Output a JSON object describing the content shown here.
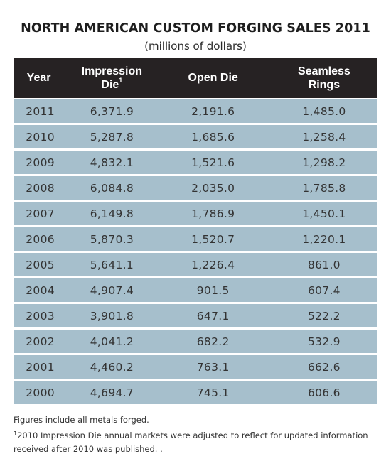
{
  "title": "NORTH AMERICAN CUSTOM FORGING SALES 2011",
  "subtitle": "(millions of dollars)",
  "table": {
    "headers": {
      "year": "Year",
      "impression_line1": "Impression",
      "impression_line2": "Die",
      "impression_sup": "1",
      "open_die": "Open Die",
      "seamless_line1": "Seamless",
      "seamless_line2": "Rings"
    },
    "rows": [
      {
        "year": "2011",
        "impression": "6,371.9",
        "open_die": "2,191.6",
        "seamless": "1,485.0"
      },
      {
        "year": "2010",
        "impression": "5,287.8",
        "open_die": "1,685.6",
        "seamless": "1,258.4"
      },
      {
        "year": "2009",
        "impression": "4,832.1",
        "open_die": "1,521.6",
        "seamless": "1,298.2"
      },
      {
        "year": "2008",
        "impression": "6,084.8",
        "open_die": "2,035.0",
        "seamless": "1,785.8"
      },
      {
        "year": "2007",
        "impression": "6,149.8",
        "open_die": "1,786.9",
        "seamless": "1,450.1"
      },
      {
        "year": "2006",
        "impression": "5,870.3",
        "open_die": "1,520.7",
        "seamless": "1,220.1"
      },
      {
        "year": "2005",
        "impression": "5,641.1",
        "open_die": "1,226.4",
        "seamless": "861.0"
      },
      {
        "year": "2004",
        "impression": "4,907.4",
        "open_die": "901.5",
        "seamless": "607.4"
      },
      {
        "year": "2003",
        "impression": "3,901.8",
        "open_die": "647.1",
        "seamless": "522.2"
      },
      {
        "year": "2002",
        "impression": "4,041.2",
        "open_die": "682.2",
        "seamless": "532.9"
      },
      {
        "year": "2001",
        "impression": "4,460.2",
        "open_die": "763.1",
        "seamless": "662.6"
      },
      {
        "year": "2000",
        "impression": "4,694.7",
        "open_die": "745.1",
        "seamless": "606.6"
      }
    ]
  },
  "notes": {
    "metals": "Figures include all metals forged.",
    "footnote_mark": "1",
    "footnote_line1": "2010 Impression Die annual markets were adjusted to reflect for updated information",
    "footnote_line2": "received after 2010 was published. ."
  }
}
